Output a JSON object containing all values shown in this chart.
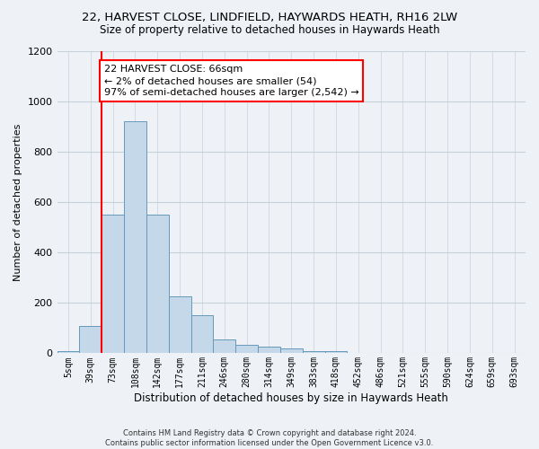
{
  "title_line1": "22, HARVEST CLOSE, LINDFIELD, HAYWARDS HEATH, RH16 2LW",
  "title_line2": "Size of property relative to detached houses in Haywards Heath",
  "xlabel": "Distribution of detached houses by size in Haywards Heath",
  "ylabel": "Number of detached properties",
  "categories": [
    "5sqm",
    "39sqm",
    "73sqm",
    "108sqm",
    "142sqm",
    "177sqm",
    "211sqm",
    "246sqm",
    "280sqm",
    "314sqm",
    "349sqm",
    "383sqm",
    "418sqm",
    "452sqm",
    "486sqm",
    "521sqm",
    "555sqm",
    "590sqm",
    "624sqm",
    "659sqm",
    "693sqm"
  ],
  "values": [
    10,
    110,
    550,
    920,
    550,
    225,
    150,
    55,
    35,
    25,
    20,
    10,
    10,
    0,
    0,
    0,
    0,
    0,
    0,
    0,
    0
  ],
  "bar_color": "#c5d8ea",
  "bar_edge_color": "#6699bb",
  "red_line_index": 1.5,
  "ylim": [
    0,
    1200
  ],
  "yticks": [
    0,
    200,
    400,
    600,
    800,
    1000,
    1200
  ],
  "annotation_text": "22 HARVEST CLOSE: 66sqm\n← 2% of detached houses are smaller (54)\n97% of semi-detached houses are larger (2,542) →",
  "annotation_box_color": "white",
  "annotation_box_edge_color": "red",
  "bg_color": "#eef2f7",
  "grid_color": "#c8d0da",
  "footer_text": "Contains HM Land Registry data © Crown copyright and database right 2024.\nContains public sector information licensed under the Open Government Licence v3.0."
}
